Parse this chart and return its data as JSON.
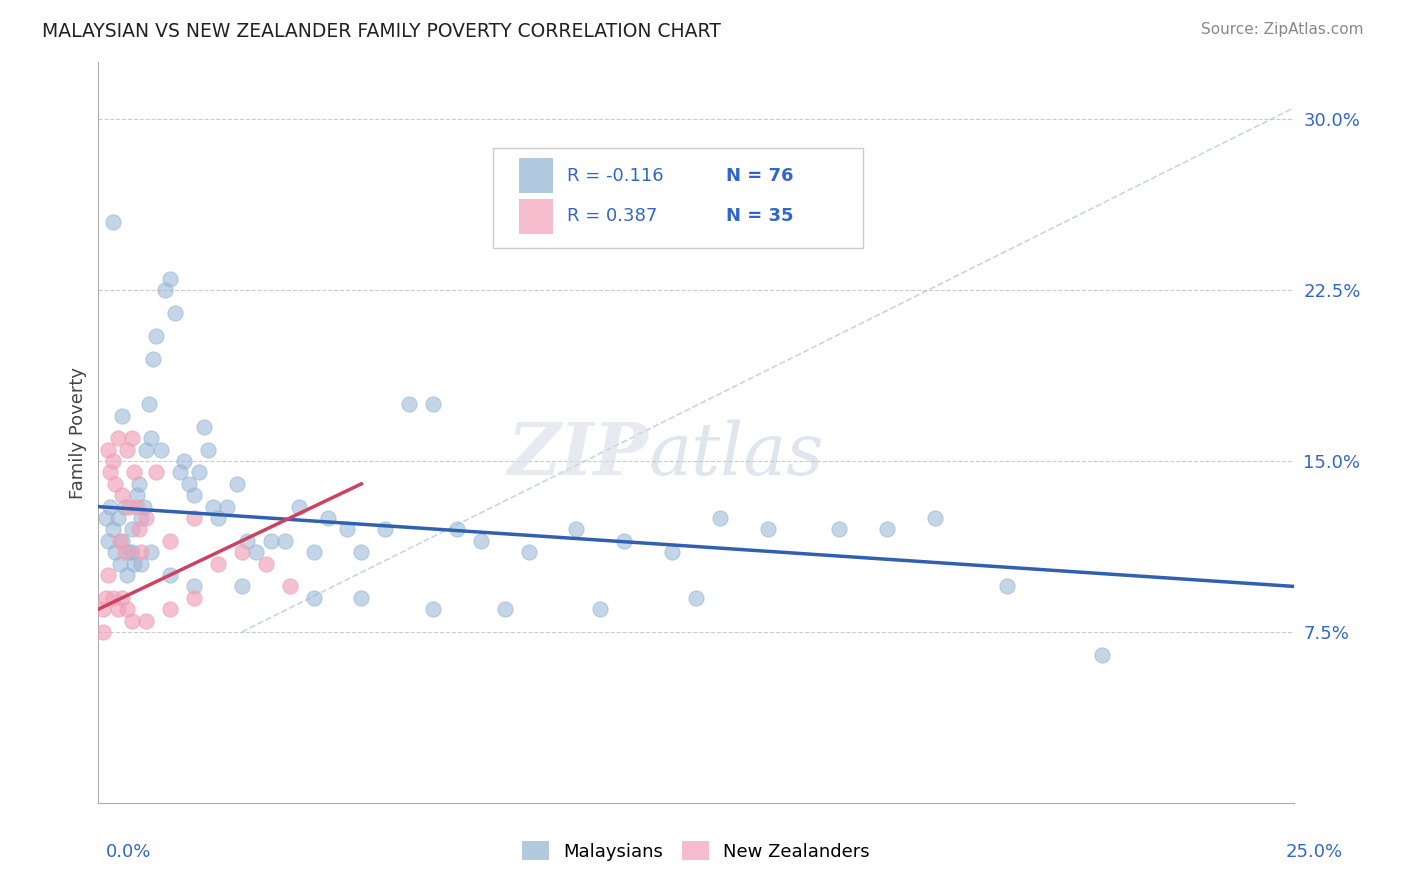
{
  "title": "MALAYSIAN VS NEW ZEALANDER FAMILY POVERTY CORRELATION CHART",
  "source": "Source: ZipAtlas.com",
  "ylabel": "Family Poverty",
  "legend_malaysians": "Malaysians",
  "legend_nz": "New Zealanders",
  "r_malaysian": -0.116,
  "n_malaysian": 76,
  "r_nz": 0.387,
  "n_nz": 35,
  "color_malaysian": "#92b4d4",
  "color_nz": "#f0a0b8",
  "color_malaysian_line": "#3060b0",
  "color_nz_line": "#d04060",
  "color_diag_line": "#c0c8d8",
  "color_text_blue": "#3366cc",
  "color_grid": "#cccccc",
  "xmin": 0.0,
  "xmax": 25.0,
  "ymin": 0.0,
  "ymax": 32.5,
  "yticks": [
    7.5,
    15.0,
    22.5,
    30.0
  ],
  "mal_line_x0": 0.0,
  "mal_line_x1": 25.0,
  "mal_line_y0": 13.0,
  "mal_line_y1": 9.5,
  "nz_line_x0": 0.0,
  "nz_line_x1": 5.5,
  "nz_line_y0": 8.5,
  "nz_line_y1": 14.0,
  "diag_line_x0": 3.0,
  "diag_line_x1": 25.0,
  "diag_line_y0": 7.5,
  "diag_line_y1": 30.5,
  "malaysian_x": [
    0.15,
    0.2,
    0.25,
    0.3,
    0.35,
    0.4,
    0.45,
    0.5,
    0.55,
    0.6,
    0.65,
    0.7,
    0.75,
    0.8,
    0.85,
    0.9,
    0.95,
    1.0,
    1.05,
    1.1,
    1.15,
    1.2,
    1.3,
    1.4,
    1.5,
    1.6,
    1.7,
    1.8,
    1.9,
    2.0,
    2.1,
    2.2,
    2.3,
    2.4,
    2.5,
    2.7,
    2.9,
    3.1,
    3.3,
    3.6,
    3.9,
    4.2,
    4.5,
    4.8,
    5.2,
    5.5,
    6.0,
    6.5,
    7.0,
    7.5,
    8.0,
    9.0,
    10.0,
    11.0,
    12.0,
    13.0,
    14.0,
    15.5,
    16.5,
    17.5,
    0.3,
    0.5,
    0.7,
    0.9,
    1.1,
    1.5,
    2.0,
    3.0,
    4.5,
    5.5,
    7.0,
    8.5,
    10.5,
    12.5,
    19.0,
    21.0
  ],
  "malaysian_y": [
    12.5,
    11.5,
    13.0,
    12.0,
    11.0,
    12.5,
    10.5,
    11.5,
    13.0,
    10.0,
    11.0,
    12.0,
    10.5,
    13.5,
    14.0,
    12.5,
    13.0,
    15.5,
    17.5,
    16.0,
    19.5,
    20.5,
    15.5,
    22.5,
    23.0,
    21.5,
    14.5,
    15.0,
    14.0,
    13.5,
    14.5,
    16.5,
    15.5,
    13.0,
    12.5,
    13.0,
    14.0,
    11.5,
    11.0,
    11.5,
    11.5,
    13.0,
    11.0,
    12.5,
    12.0,
    11.0,
    12.0,
    17.5,
    17.5,
    12.0,
    11.5,
    11.0,
    12.0,
    11.5,
    11.0,
    12.5,
    12.0,
    12.0,
    12.0,
    12.5,
    25.5,
    17.0,
    11.0,
    10.5,
    11.0,
    10.0,
    9.5,
    9.5,
    9.0,
    9.0,
    8.5,
    8.5,
    8.5,
    9.0,
    9.5,
    6.5
  ],
  "nz_x": [
    0.1,
    0.15,
    0.2,
    0.25,
    0.3,
    0.35,
    0.4,
    0.45,
    0.5,
    0.55,
    0.6,
    0.65,
    0.7,
    0.75,
    0.8,
    0.85,
    0.9,
    1.0,
    1.2,
    1.5,
    2.0,
    2.5,
    3.0,
    3.5,
    4.0,
    0.2,
    0.3,
    0.4,
    0.5,
    0.6,
    0.7,
    1.0,
    1.5,
    2.0,
    0.1
  ],
  "nz_y": [
    8.5,
    9.0,
    15.5,
    14.5,
    15.0,
    14.0,
    16.0,
    11.5,
    13.5,
    11.0,
    15.5,
    13.0,
    16.0,
    14.5,
    13.0,
    12.0,
    11.0,
    12.5,
    14.5,
    11.5,
    12.5,
    10.5,
    11.0,
    10.5,
    9.5,
    10.0,
    9.0,
    8.5,
    9.0,
    8.5,
    8.0,
    8.0,
    8.5,
    9.0,
    7.5
  ]
}
